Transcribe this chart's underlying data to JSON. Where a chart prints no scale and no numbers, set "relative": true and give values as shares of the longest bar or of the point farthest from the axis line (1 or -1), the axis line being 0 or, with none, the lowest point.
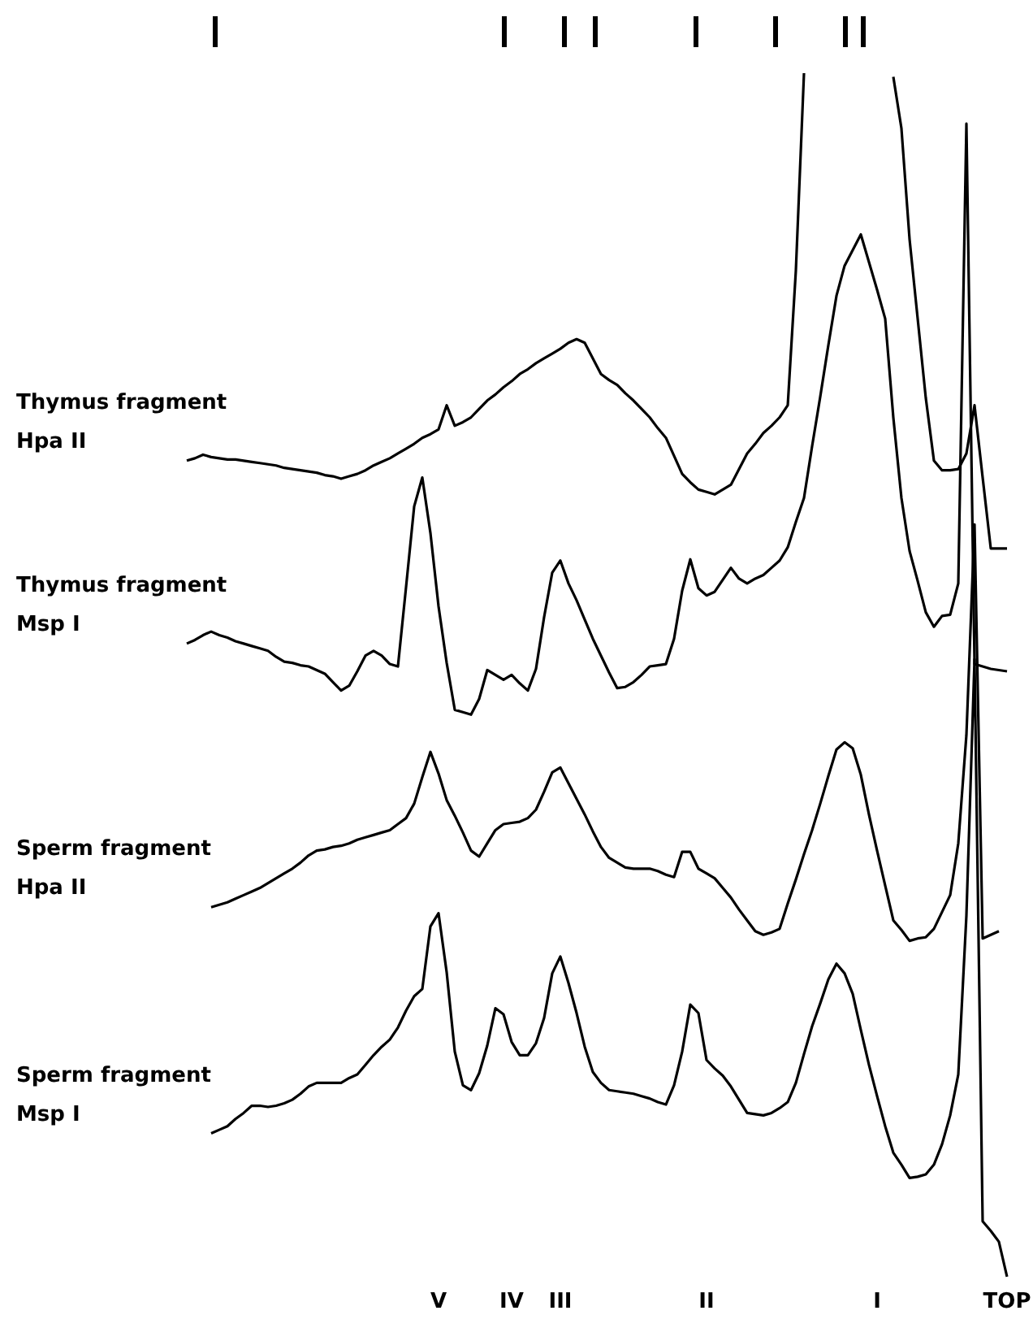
{
  "chart_data": {
    "type": "line",
    "relative": true,
    "grid": false,
    "legend": false,
    "marker": "none",
    "line_style": "solid",
    "categories": [
      null,
      null,
      null,
      null,
      null,
      null,
      null,
      null,
      null,
      null,
      null,
      null,
      null,
      null,
      null,
      null,
      null,
      null,
      null,
      null,
      null,
      null,
      null,
      null,
      null,
      null,
      null,
      null,
      null,
      null,
      null,
      "V",
      null,
      null,
      null,
      null,
      null,
      null,
      null,
      null,
      "IV",
      null,
      null,
      null,
      null,
      null,
      "III",
      null,
      null,
      null,
      null,
      null,
      null,
      null,
      null,
      null,
      null,
      null,
      null,
      null,
      null,
      null,
      null,
      null,
      "II",
      null,
      null,
      null,
      null,
      null,
      null,
      null,
      null,
      null,
      null,
      null,
      null,
      null,
      null,
      null,
      null,
      null,
      null,
      null,
      null,
      "I",
      null,
      null,
      null,
      null,
      null,
      null,
      null,
      null,
      null,
      null,
      null,
      null,
      null,
      null,
      null,
      "TOP",
      null
    ],
    "series": [
      {
        "name": "Thymus fragment\nHpa II",
        "color": "#000000",
        "values": [
          0.678,
          0.68,
          0.683,
          0.681,
          0.68,
          0.679,
          0.679,
          0.678,
          0.677,
          0.676,
          0.675,
          0.674,
          0.672,
          0.671,
          0.67,
          0.669,
          0.668,
          0.666,
          0.665,
          0.663,
          0.665,
          0.667,
          0.67,
          0.674,
          0.677,
          0.68,
          0.684,
          0.688,
          0.692,
          0.697,
          0.7,
          0.704,
          0.724,
          0.707,
          0.71,
          0.714,
          0.721,
          0.728,
          0.733,
          0.739,
          0.744,
          0.75,
          0.754,
          0.759,
          0.763,
          0.767,
          0.771,
          0.776,
          0.779,
          0.776,
          0.763,
          0.75,
          0.745,
          0.741,
          0.734,
          0.728,
          0.721,
          0.714,
          0.705,
          0.697,
          0.682,
          0.667,
          0.66,
          0.654,
          0.652,
          0.65,
          0.654,
          0.658,
          0.671,
          0.684,
          0.692,
          0.701,
          0.707,
          0.714,
          0.724,
          0.836,
          1,
          null,
          null,
          null,
          null,
          null,
          null,
          null,
          null,
          null,
          null,
          0.997,
          0.954,
          0.862,
          0.796,
          0.73,
          0.678,
          0.67,
          0.67,
          0.671,
          0.684,
          0.724,
          0.664,
          0.605,
          0.605,
          0.605,
          null
        ]
      },
      {
        "name": "Thymus fragment\nMsp I",
        "color": "#000000",
        "values": [
          0.526,
          0.529,
          0.533,
          0.536,
          0.533,
          0.531,
          0.528,
          0.526,
          0.524,
          0.522,
          0.52,
          0.515,
          0.511,
          0.51,
          0.508,
          0.507,
          0.504,
          0.501,
          0.494,
          0.487,
          0.491,
          0.503,
          0.516,
          0.52,
          0.516,
          0.509,
          0.507,
          0.573,
          0.64,
          0.664,
          0.618,
          0.557,
          0.51,
          0.471,
          0.469,
          0.467,
          0.48,
          0.504,
          0.5,
          0.496,
          0.5,
          0.493,
          0.487,
          0.505,
          0.548,
          0.585,
          0.595,
          0.576,
          0.562,
          0.546,
          0.53,
          0.516,
          0.502,
          0.489,
          0.49,
          0.494,
          0.5,
          0.507,
          0.508,
          0.509,
          0.53,
          0.57,
          0.596,
          0.572,
          0.566,
          0.569,
          0.579,
          0.589,
          0.58,
          0.576,
          0.58,
          0.583,
          0.589,
          0.595,
          0.606,
          0.627,
          0.647,
          0.69,
          0.731,
          0.774,
          0.815,
          0.84,
          0.853,
          0.866,
          0.843,
          0.82,
          0.796,
          0.714,
          0.647,
          0.603,
          0.578,
          0.552,
          0.54,
          0.549,
          0.55,
          0.576,
          0.958,
          0.509,
          0.507,
          0.505,
          0.504,
          0.503,
          null
        ]
      },
      {
        "name": "Sperm fragment\nHpa II",
        "color": "#000000",
        "values": [
          null,
          null,
          null,
          0.307,
          0.309,
          0.311,
          0.314,
          0.317,
          0.32,
          0.323,
          0.327,
          0.331,
          0.335,
          0.339,
          0.344,
          0.35,
          0.354,
          0.355,
          0.357,
          0.358,
          0.36,
          0.363,
          0.365,
          0.367,
          0.369,
          0.371,
          0.376,
          0.381,
          0.393,
          0.415,
          0.436,
          0.418,
          0.396,
          0.383,
          0.369,
          0.354,
          0.349,
          0.36,
          0.371,
          0.376,
          0.377,
          0.378,
          0.381,
          0.388,
          0.403,
          0.419,
          0.423,
          0.41,
          0.397,
          0.384,
          0.37,
          0.357,
          0.348,
          0.344,
          0.34,
          0.339,
          0.339,
          0.339,
          0.337,
          0.334,
          0.332,
          0.353,
          0.353,
          0.339,
          0.335,
          0.331,
          0.323,
          0.315,
          0.305,
          0.296,
          0.287,
          0.284,
          0.286,
          0.289,
          0.31,
          0.33,
          0.351,
          0.371,
          0.393,
          0.416,
          0.438,
          0.444,
          0.439,
          0.417,
          0.384,
          0.354,
          0.325,
          0.296,
          0.288,
          0.279,
          0.281,
          0.282,
          0.289,
          0.303,
          0.317,
          0.36,
          0.45,
          0.625,
          0.281,
          0.284,
          0.287,
          null,
          null
        ]
      },
      {
        "name": "Sperm fragment\nMsp I",
        "color": "#000000",
        "values": [
          null,
          null,
          null,
          0.119,
          0.122,
          0.125,
          0.131,
          0.136,
          0.142,
          0.142,
          0.141,
          0.142,
          0.144,
          0.147,
          0.152,
          0.158,
          0.161,
          0.161,
          0.161,
          0.161,
          0.165,
          0.168,
          0.176,
          0.184,
          0.191,
          0.197,
          0.207,
          0.221,
          0.233,
          0.239,
          0.291,
          0.302,
          0.253,
          0.187,
          0.159,
          0.155,
          0.169,
          0.192,
          0.223,
          0.218,
          0.195,
          0.184,
          0.184,
          0.194,
          0.215,
          0.252,
          0.266,
          0.244,
          0.219,
          0.191,
          0.17,
          0.161,
          0.155,
          0.154,
          0.153,
          0.152,
          0.15,
          0.148,
          0.145,
          0.143,
          0.159,
          0.187,
          0.226,
          0.219,
          0.18,
          0.173,
          0.167,
          0.158,
          0.147,
          0.136,
          0.135,
          0.134,
          0.136,
          0.14,
          0.145,
          0.161,
          0.185,
          0.208,
          0.227,
          0.247,
          0.26,
          0.252,
          0.235,
          0.205,
          0.176,
          0.15,
          0.125,
          0.103,
          0.093,
          0.082,
          0.083,
          0.085,
          0.093,
          0.11,
          0.134,
          0.168,
          0.3,
          0.513,
          0.046,
          0.038,
          0.029,
          0,
          null
        ]
      }
    ]
  }
}
